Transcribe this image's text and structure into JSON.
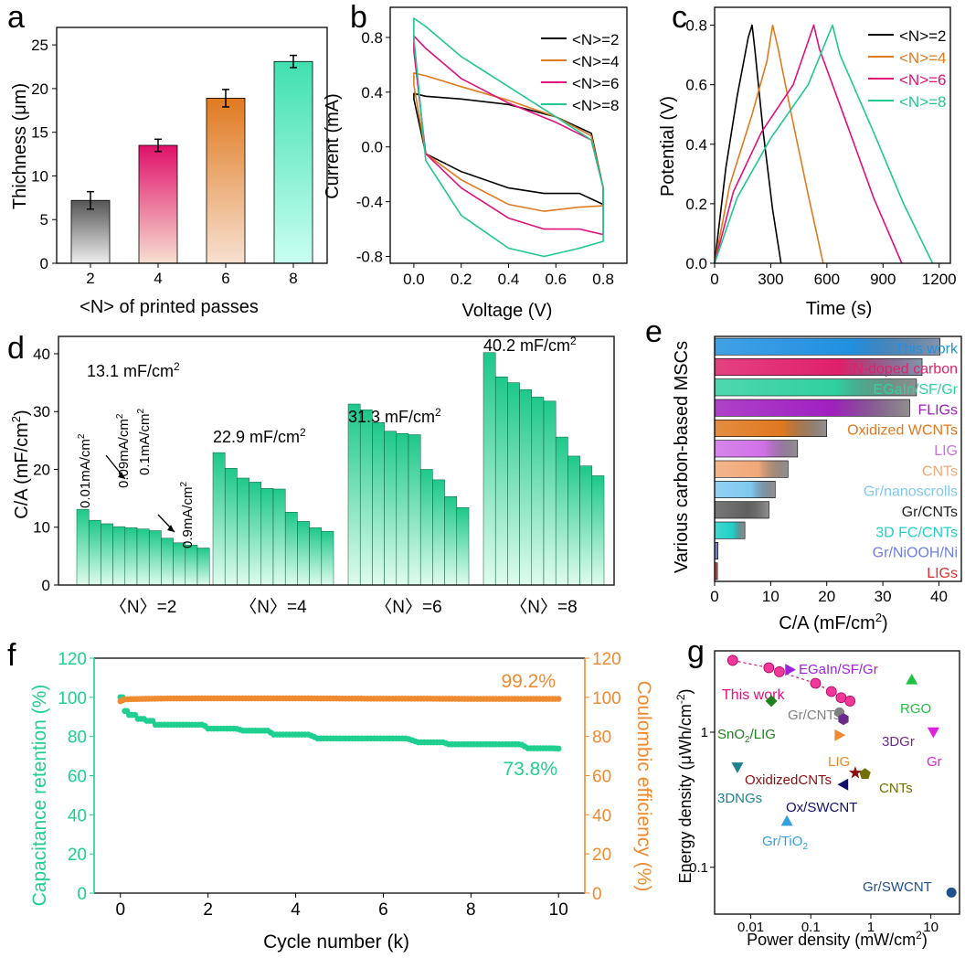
{
  "panels": {
    "a": "a",
    "b": "b",
    "c": "c",
    "d": "d",
    "e": "e",
    "f": "f",
    "g": "g"
  },
  "chart_data": [
    {
      "id": "a",
      "type": "bar",
      "xlabel": "<N> of printed passes",
      "ylabel": "Thichness (μm)",
      "categories": [
        "2",
        "4",
        "6",
        "8"
      ],
      "values": [
        7.2,
        13.5,
        18.9,
        23.1
      ],
      "errors": [
        1.0,
        0.7,
        1.0,
        0.7
      ],
      "colors": [
        "#555555",
        "#e0106a",
        "#e07a20",
        "#40e0b0"
      ],
      "ylim": [
        0,
        27
      ],
      "yticks": [
        0,
        5,
        10,
        15,
        20,
        25
      ]
    },
    {
      "id": "b",
      "type": "line",
      "xlabel": "Voltage (V)",
      "ylabel": "Current (mA)",
      "xlim": [
        -0.1,
        0.9
      ],
      "ylim": [
        -0.85,
        1.02
      ],
      "xticks": [
        0.0,
        0.2,
        0.4,
        0.6,
        0.8
      ],
      "yticks": [
        -0.8,
        -0.4,
        0.0,
        0.4,
        0.8
      ],
      "xtick_labels": [
        "0.0",
        "0.2",
        "0.4",
        "0.6",
        "0.8"
      ],
      "ytick_labels": [
        "-0.8",
        "-0.4",
        "0.0",
        "0.4",
        "0.8"
      ],
      "series": [
        {
          "name": "<N>=2",
          "color": "#000000",
          "x": [
            0,
            0.05,
            0.2,
            0.4,
            0.6,
            0.75,
            0.8,
            0.8,
            0.7,
            0.55,
            0.4,
            0.2,
            0.05,
            0.0
          ],
          "y": [
            0.39,
            0.37,
            0.35,
            0.31,
            0.22,
            0.1,
            -0.3,
            -0.42,
            -0.34,
            -0.34,
            -0.3,
            -0.18,
            -0.05,
            0.35
          ]
        },
        {
          "name": "<N>=4",
          "color": "#e07a20",
          "x": [
            0,
            0.05,
            0.2,
            0.4,
            0.6,
            0.75,
            0.8,
            0.8,
            0.7,
            0.55,
            0.4,
            0.2,
            0.05,
            0.0
          ],
          "y": [
            0.54,
            0.52,
            0.44,
            0.34,
            0.22,
            0.08,
            -0.3,
            -0.43,
            -0.44,
            -0.47,
            -0.42,
            -0.24,
            -0.05,
            0.45
          ]
        },
        {
          "name": "<N>=6",
          "color": "#e0107a",
          "x": [
            0,
            0.05,
            0.2,
            0.4,
            0.6,
            0.75,
            0.8,
            0.8,
            0.7,
            0.55,
            0.4,
            0.2,
            0.05,
            0.0
          ],
          "y": [
            0.81,
            0.72,
            0.5,
            0.32,
            0.18,
            0.05,
            -0.3,
            -0.64,
            -0.6,
            -0.6,
            -0.52,
            -0.3,
            -0.05,
            0.7
          ]
        },
        {
          "name": "<N>=8",
          "color": "#20c890",
          "x": [
            0,
            0.05,
            0.2,
            0.4,
            0.6,
            0.75,
            0.8,
            0.8,
            0.7,
            0.55,
            0.4,
            0.2,
            0.05,
            0.0
          ],
          "y": [
            0.94,
            0.88,
            0.66,
            0.44,
            0.22,
            0.05,
            -0.3,
            -0.69,
            -0.74,
            -0.8,
            -0.74,
            -0.5,
            -0.1,
            0.8
          ]
        }
      ]
    },
    {
      "id": "c",
      "type": "line",
      "xlabel": "Time (s)",
      "ylabel": "Potential (V)",
      "xlim": [
        0,
        1260
      ],
      "ylim": [
        0,
        0.86
      ],
      "xticks": [
        0,
        300,
        600,
        900,
        1200
      ],
      "yticks": [
        0,
        0.2,
        0.4,
        0.6,
        0.8
      ],
      "xtick_labels": [
        "0",
        "300",
        "600",
        "900",
        "1200"
      ],
      "ytick_labels": [
        "0.0",
        "0.2",
        "0.4",
        "0.6",
        "0.8"
      ],
      "series": [
        {
          "name": "<N>=2",
          "color": "#000000",
          "x": [
            0,
            60,
            120,
            180,
            200,
            215,
            260,
            310,
            355
          ],
          "y": [
            0,
            0.32,
            0.56,
            0.76,
            0.8,
            0.72,
            0.44,
            0.18,
            0
          ]
        },
        {
          "name": "<N>=4",
          "color": "#e07a20",
          "x": [
            0,
            80,
            200,
            280,
            310,
            340,
            420,
            500,
            580
          ],
          "y": [
            0,
            0.26,
            0.5,
            0.68,
            0.8,
            0.72,
            0.47,
            0.23,
            0
          ]
        },
        {
          "name": "<N>=6",
          "color": "#e0107a",
          "x": [
            0,
            100,
            250,
            420,
            530,
            560,
            700,
            850,
            1000
          ],
          "y": [
            0,
            0.24,
            0.44,
            0.6,
            0.8,
            0.72,
            0.48,
            0.22,
            0
          ]
        },
        {
          "name": "<N>=8",
          "color": "#20c890",
          "x": [
            0,
            120,
            300,
            500,
            630,
            670,
            850,
            1010,
            1165
          ],
          "y": [
            0,
            0.22,
            0.42,
            0.6,
            0.8,
            0.7,
            0.44,
            0.2,
            0
          ]
        }
      ]
    },
    {
      "id": "d",
      "type": "bar",
      "ylabel": "C/A (mF/cm2)",
      "ylim": [
        0,
        43
      ],
      "yticks": [
        0,
        10,
        20,
        30,
        40
      ],
      "groups": [
        {
          "label": "〈N〉=2",
          "values": [
            13.1,
            11.2,
            10.6,
            10.1,
            9.9,
            9.7,
            9.4,
            8.1,
            7.3,
            6.9,
            6.4
          ],
          "annotation": "13.1 mF/cm2"
        },
        {
          "label": "〈N〉=4",
          "values": [
            22.9,
            20.2,
            18.5,
            17.8,
            16.7,
            16.6,
            12.6,
            11.0,
            9.9,
            9.3
          ],
          "annotation": "22.9 mF/cm2"
        },
        {
          "label": "〈N〉=6",
          "values": [
            31.3,
            30.3,
            28.1,
            26.6,
            26.2,
            26.0,
            20.0,
            18.2,
            15.3,
            13.4
          ],
          "annotation": "31.3 mF/cm2"
        },
        {
          "label": "〈N〉=8",
          "values": [
            40.2,
            36.0,
            35.0,
            33.8,
            32.5,
            31.8,
            25.6,
            22.3,
            20.6,
            18.9
          ],
          "annotation": "40.2 mF/cm2"
        }
      ],
      "current_labels": [
        "0.01mA/cm2",
        "0.09mA/cm2",
        "0.1mA/cm2",
        "0.9mA/cm2"
      ]
    },
    {
      "id": "e",
      "type": "bar",
      "orientation": "horizontal",
      "xlabel": "C/A (mF/cm2)",
      "ylabel": "Various carbon-based MSCs",
      "xlim": [
        0,
        44
      ],
      "xticks": [
        0,
        10,
        20,
        30,
        40
      ],
      "categories": [
        "This work",
        "N-doped carbon",
        "EGaIn/SF/Gr",
        "FLIGs",
        "Oxidized WCNTs",
        "LIG",
        "CNTs",
        "Gr/nanoscrolls",
        "Gr/CNTs",
        "3D FC/CNTs",
        "Gr/NiOOH/Ni",
        "LIGs"
      ],
      "values": [
        40.2,
        37.0,
        36.0,
        34.8,
        20.0,
        14.8,
        13.1,
        10.8,
        9.7,
        5.4,
        0.6,
        0.5
      ],
      "colors": [
        "#2090e0",
        "#e0206a",
        "#30d0a0",
        "#a020c0",
        "#e07820",
        "#d070e8",
        "#f0a878",
        "#80c8f0",
        "#606060",
        "#20d0c8",
        "#7080e0",
        "#e03030"
      ]
    },
    {
      "id": "f",
      "type": "scatter",
      "xlabel": "Cycle number (k)",
      "ylabel": "Capacitance retention (%)",
      "y2label": "Coulombic efficiency (%)",
      "xlim": [
        -0.6,
        10.6
      ],
      "ylim": [
        0,
        120
      ],
      "xticks": [
        0,
        2,
        4,
        6,
        8,
        10
      ],
      "yticks": [
        0,
        20,
        40,
        60,
        80,
        100,
        120
      ],
      "series": [
        {
          "name": "Capacitance retention",
          "color": "#1fcf8f",
          "x": [
            0,
            0.1,
            0.2,
            0.4,
            0.6,
            0.8,
            1.5,
            2.0,
            2.8,
            3.5,
            4.5,
            5.5,
            6.8,
            7.5,
            8.5,
            9.3,
            10
          ],
          "y": [
            100,
            93,
            91,
            89,
            88,
            86,
            86,
            84,
            83,
            81,
            79,
            79,
            77,
            76,
            76,
            74,
            73.8
          ]
        },
        {
          "name": "Coulombic efficiency",
          "color": "#f08a30",
          "x": [
            0,
            0.1,
            0.5,
            1,
            2,
            3,
            4,
            5,
            6,
            7,
            8,
            9,
            10
          ],
          "y": [
            98,
            99,
            99.2,
            99.4,
            99.5,
            99.5,
            99.5,
            99.4,
            99.3,
            99.3,
            99.2,
            99.2,
            99.2
          ]
        }
      ],
      "annotations": [
        "99.2%",
        "73.8%"
      ]
    },
    {
      "id": "g",
      "type": "scatter",
      "xscale": "log",
      "yscale": "log",
      "xlabel": "Power density (mW/cm2)",
      "ylabel": "Energy density (μWh/cm-2)",
      "xlim": [
        0.0025,
        30
      ],
      "ylim": [
        0.045,
        4.0
      ],
      "xtick_labels": [
        "0.01",
        "0.1",
        "1",
        "10"
      ],
      "ytick_labels": [
        "0.1",
        "1"
      ],
      "this_work": {
        "x": [
          0.005,
          0.02,
          0.03,
          0.12,
          0.22,
          0.32,
          0.45
        ],
        "y": [
          3.4,
          3.0,
          2.8,
          2.3,
          2.0,
          1.8,
          1.7
        ]
      },
      "points": [
        {
          "name": "EGaIn/SF/Gr",
          "x": 0.045,
          "y": 2.9,
          "marker": "tri-right",
          "color": "#a020e0"
        },
        {
          "name": "RGO",
          "x": 4.8,
          "y": 2.45,
          "marker": "tri-up",
          "color": "#20c040"
        },
        {
          "name": "Gr/CNTs",
          "x": 0.3,
          "y": 1.4,
          "marker": "circle",
          "color": "#808080"
        },
        {
          "name": "SnO2/LIG",
          "x": 0.022,
          "y": 1.7,
          "marker": "diamond",
          "color": "#208020"
        },
        {
          "name": "3DGr",
          "x": 0.35,
          "y": 1.25,
          "marker": "hexagon",
          "color": "#6a2a8a"
        },
        {
          "name": "Gr",
          "x": 11,
          "y": 1.0,
          "marker": "tri-down",
          "color": "#e020e0"
        },
        {
          "name": "LIG",
          "x": 0.3,
          "y": 0.95,
          "marker": "tri-right",
          "color": "#f08a30"
        },
        {
          "name": "OxidizedCNTs",
          "x": 0.55,
          "y": 0.5,
          "marker": "star",
          "color": "#8a1010"
        },
        {
          "name": "CNTs",
          "x": 0.8,
          "y": 0.49,
          "marker": "pentagon",
          "color": "#707000"
        },
        {
          "name": "3DNGs",
          "x": 0.006,
          "y": 0.55,
          "marker": "tri-down",
          "color": "#208090"
        },
        {
          "name": "Ox/SWCNT",
          "x": 0.35,
          "y": 0.41,
          "marker": "tri-left",
          "color": "#10106a"
        },
        {
          "name": "Gr/TiO2",
          "x": 0.04,
          "y": 0.22,
          "marker": "tri-up",
          "color": "#30a0e0"
        },
        {
          "name": "Gr/SWCNT",
          "x": 22,
          "y": 0.065,
          "marker": "circle",
          "color": "#205090"
        }
      ]
    }
  ],
  "labels": {
    "a_y": "Thichness (μm)",
    "a_x": "<N> of printed passes",
    "b_y": "Current (mA)",
    "b_x": "Voltage (V)",
    "c_y": "Potential (V)",
    "c_x": "Time (s)",
    "d_y": "C/A (mF/cm",
    "d_y_sup": "2",
    "d_y_end": ")",
    "e_y": "Various carbon-based MSCs",
    "e_x": "C/A (mF/cm",
    "e_x_sup": "2",
    "e_x_end": ")",
    "f_y": "Capacitance retention (%)",
    "f_y2": "Coulombic efficiency (%)",
    "f_x": "Cycle number (k)",
    "f_ann1": "99.2%",
    "f_ann2": "73.8%",
    "g_y1": "Energy density (μWh/cm",
    "g_y_sup": "-2",
    "g_y_end": ")",
    "g_x": "Power density (mW/cm",
    "g_x_sup": "2",
    "g_x_end": ")",
    "g_thiswork": "This work"
  },
  "legend": [
    "<N>=2",
    "<N>=4",
    "<N>=6",
    "<N>=8"
  ]
}
